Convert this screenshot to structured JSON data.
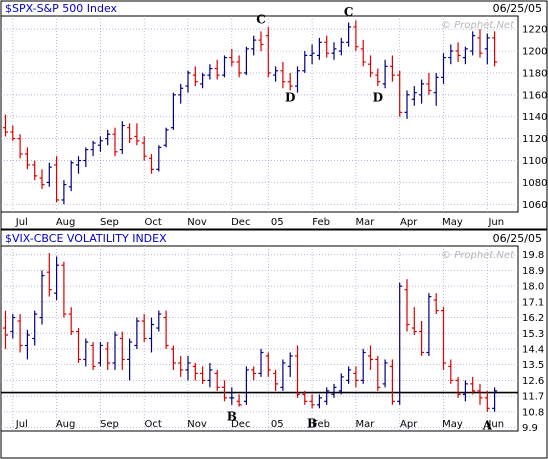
{
  "colors": {
    "up": "#000080",
    "down": "#dd0000",
    "grid": "#9aa0c8",
    "frame": "#000000"
  },
  "chart_data": [
    {
      "type": "ohlc",
      "title": "$SPX-S&P 500 Index",
      "date": "06/25/05",
      "watermark": "© Prophet.Net",
      "x_tick_labels": [
        "Jul",
        "Aug",
        "Sep",
        "Oct",
        "Nov",
        "Dec",
        "05",
        "Feb",
        "Mar",
        "Apr",
        "May",
        "Jun"
      ],
      "x_tick_bar": [
        1,
        7,
        13,
        19,
        25,
        31,
        36,
        42,
        48,
        54,
        60,
        66
      ],
      "y_ticks": [
        1060,
        1080,
        1100,
        1120,
        1140,
        1160,
        1180,
        1200,
        1220
      ],
      "ylim": [
        1053,
        1232
      ],
      "grid": true,
      "bars": [
        [
          1130,
          1142,
          1122,
          1126
        ],
        [
          1126,
          1132,
          1118,
          1120
        ],
        [
          1120,
          1124,
          1102,
          1106
        ],
        [
          1106,
          1112,
          1092,
          1096
        ],
        [
          1096,
          1100,
          1082,
          1086
        ],
        [
          1084,
          1092,
          1074,
          1078
        ],
        [
          1080,
          1098,
          1076,
          1094
        ],
        [
          1096,
          1104,
          1062,
          1064
        ],
        [
          1064,
          1082,
          1060,
          1078
        ],
        [
          1076,
          1100,
          1072,
          1098
        ],
        [
          1096,
          1104,
          1088,
          1100
        ],
        [
          1100,
          1112,
          1094,
          1110
        ],
        [
          1110,
          1118,
          1104,
          1116
        ],
        [
          1114,
          1122,
          1108,
          1118
        ],
        [
          1120,
          1128,
          1114,
          1124
        ],
        [
          1124,
          1130,
          1104,
          1108
        ],
        [
          1110,
          1136,
          1106,
          1132
        ],
        [
          1130,
          1134,
          1116,
          1120
        ],
        [
          1122,
          1134,
          1114,
          1118
        ],
        [
          1116,
          1122,
          1100,
          1104
        ],
        [
          1102,
          1106,
          1088,
          1092
        ],
        [
          1092,
          1114,
          1090,
          1112
        ],
        [
          1114,
          1130,
          1112,
          1128
        ],
        [
          1130,
          1162,
          1128,
          1160
        ],
        [
          1160,
          1170,
          1152,
          1166
        ],
        [
          1168,
          1182,
          1162,
          1180
        ],
        [
          1178,
          1186,
          1168,
          1172
        ],
        [
          1170,
          1180,
          1166,
          1178
        ],
        [
          1178,
          1188,
          1174,
          1184
        ],
        [
          1184,
          1192,
          1174,
          1178
        ],
        [
          1178,
          1196,
          1176,
          1194
        ],
        [
          1194,
          1202,
          1186,
          1190
        ],
        [
          1190,
          1196,
          1176,
          1180
        ],
        [
          1180,
          1204,
          1178,
          1202
        ],
        [
          1202,
          1214,
          1196,
          1210
        ],
        [
          1210,
          1218,
          1200,
          1206
        ],
        [
          1214,
          1222,
          1176,
          1180
        ],
        [
          1178,
          1186,
          1172,
          1182
        ],
        [
          1182,
          1190,
          1166,
          1172
        ],
        [
          1172,
          1180,
          1164,
          1168
        ],
        [
          1168,
          1186,
          1162,
          1182
        ],
        [
          1182,
          1200,
          1180,
          1196
        ],
        [
          1196,
          1206,
          1188,
          1198
        ],
        [
          1196,
          1212,
          1192,
          1208
        ],
        [
          1208,
          1214,
          1194,
          1198
        ],
        [
          1198,
          1208,
          1192,
          1202
        ],
        [
          1200,
          1212,
          1196,
          1208
        ],
        [
          1208,
          1226,
          1204,
          1222
        ],
        [
          1222,
          1228,
          1200,
          1204
        ],
        [
          1202,
          1210,
          1186,
          1190
        ],
        [
          1188,
          1196,
          1176,
          1180
        ],
        [
          1178,
          1184,
          1168,
          1172
        ],
        [
          1170,
          1192,
          1166,
          1186
        ],
        [
          1186,
          1196,
          1172,
          1178
        ],
        [
          1178,
          1182,
          1140,
          1144
        ],
        [
          1144,
          1164,
          1138,
          1160
        ],
        [
          1156,
          1168,
          1150,
          1162
        ],
        [
          1160,
          1174,
          1152,
          1170
        ],
        [
          1170,
          1180,
          1160,
          1164
        ],
        [
          1162,
          1180,
          1150,
          1176
        ],
        [
          1176,
          1198,
          1170,
          1194
        ],
        [
          1194,
          1206,
          1188,
          1200
        ],
        [
          1200,
          1208,
          1190,
          1196
        ],
        [
          1194,
          1204,
          1188,
          1202
        ],
        [
          1200,
          1218,
          1196,
          1214
        ],
        [
          1212,
          1220,
          1194,
          1198
        ],
        [
          1202,
          1216,
          1188,
          1212
        ],
        [
          1212,
          1218,
          1186,
          1190
        ]
      ],
      "annotations": [
        {
          "label": "C",
          "bar": 35,
          "value": 1225
        },
        {
          "label": "D",
          "bar": 39,
          "value": 1154
        },
        {
          "label": "C",
          "bar": 47,
          "value": 1232
        },
        {
          "label": "D",
          "bar": 51,
          "value": 1154
        }
      ]
    },
    {
      "type": "ohlc",
      "title": "$VIX-CBCE VOLATILITY INDEX",
      "date": "06/25/05",
      "watermark": "© Prophet.Net",
      "x_tick_labels": [
        "Jul",
        "Aug",
        "Sep",
        "Oct",
        "Nov",
        "Dec",
        "05",
        "Feb",
        "Mar",
        "Apr",
        "May",
        "Jun"
      ],
      "x_tick_bar": [
        1,
        7,
        13,
        19,
        25,
        31,
        36,
        42,
        48,
        54,
        60,
        66
      ],
      "y_ticks": [
        9.9,
        10.8,
        11.7,
        12.6,
        13.5,
        14.4,
        15.3,
        16.2,
        17.1,
        18.0,
        18.9,
        19.8
      ],
      "ylim": [
        9.7,
        20.3
      ],
      "grid": true,
      "reference_line": 11.9,
      "bars": [
        [
          15.6,
          16.6,
          14.4,
          15.2
        ],
        [
          15.4,
          16.4,
          15.0,
          16.2
        ],
        [
          16.0,
          16.4,
          14.2,
          14.6
        ],
        [
          14.6,
          15.5,
          13.8,
          15.2
        ],
        [
          15.0,
          16.6,
          14.6,
          16.4
        ],
        [
          16.2,
          18.9,
          15.8,
          18.6
        ],
        [
          18.8,
          19.9,
          17.4,
          17.8
        ],
        [
          17.6,
          19.7,
          17.2,
          19.2
        ],
        [
          19.2,
          19.4,
          16.2,
          16.4
        ],
        [
          16.4,
          16.8,
          15.2,
          15.4
        ],
        [
          15.4,
          15.6,
          13.6,
          13.8
        ],
        [
          13.8,
          15.0,
          13.4,
          14.8
        ],
        [
          14.6,
          14.8,
          13.2,
          13.4
        ],
        [
          13.6,
          14.8,
          13.4,
          14.6
        ],
        [
          14.4,
          14.8,
          13.2,
          13.6
        ],
        [
          13.6,
          15.4,
          13.2,
          15.2
        ],
        [
          15.0,
          15.4,
          13.2,
          13.8
        ],
        [
          13.8,
          15.0,
          12.6,
          14.8
        ],
        [
          14.6,
          16.2,
          14.4,
          16.0
        ],
        [
          16.0,
          16.4,
          14.8,
          15.0
        ],
        [
          15.0,
          16.2,
          14.2,
          15.8
        ],
        [
          15.6,
          16.6,
          15.4,
          16.4
        ],
        [
          16.2,
          16.6,
          14.4,
          14.6
        ],
        [
          14.4,
          14.6,
          13.2,
          13.6
        ],
        [
          13.6,
          14.0,
          12.8,
          13.2
        ],
        [
          13.2,
          14.0,
          12.6,
          13.6
        ],
        [
          13.4,
          13.6,
          12.6,
          13.0
        ],
        [
          13.0,
          13.4,
          12.4,
          12.6
        ],
        [
          12.6,
          13.6,
          12.2,
          13.2
        ],
        [
          13.0,
          13.2,
          12.0,
          12.2
        ],
        [
          12.2,
          12.6,
          11.4,
          11.6
        ],
        [
          11.6,
          12.2,
          11.2,
          11.6
        ],
        [
          11.4,
          11.8,
          11.1,
          11.2
        ],
        [
          11.4,
          13.4,
          11.2,
          13.2
        ],
        [
          13.2,
          13.4,
          12.6,
          13.0
        ],
        [
          13.0,
          14.4,
          12.8,
          14.2
        ],
        [
          14.0,
          14.2,
          12.8,
          13.2
        ],
        [
          13.0,
          13.2,
          12.0,
          12.4
        ],
        [
          12.2,
          13.8,
          12.0,
          13.6
        ],
        [
          13.4,
          14.2,
          12.8,
          14.0
        ],
        [
          14.0,
          14.6,
          11.6,
          11.8
        ],
        [
          11.8,
          12.0,
          11.2,
          11.4
        ],
        [
          11.4,
          11.8,
          11.0,
          11.2
        ],
        [
          11.2,
          11.8,
          11.0,
          11.6
        ],
        [
          11.4,
          12.2,
          11.2,
          12.0
        ],
        [
          11.8,
          12.4,
          11.6,
          12.2
        ],
        [
          12.0,
          13.0,
          11.8,
          12.8
        ],
        [
          12.6,
          13.4,
          12.4,
          13.2
        ],
        [
          13.0,
          13.4,
          12.2,
          12.6
        ],
        [
          12.6,
          14.4,
          12.4,
          14.2
        ],
        [
          14.0,
          14.6,
          13.2,
          13.8
        ],
        [
          13.8,
          14.0,
          12.0,
          12.2
        ],
        [
          12.4,
          13.8,
          12.2,
          13.6
        ],
        [
          13.4,
          13.8,
          11.2,
          11.4
        ],
        [
          11.4,
          18.2,
          11.2,
          18.0
        ],
        [
          17.8,
          18.4,
          15.4,
          15.8
        ],
        [
          15.6,
          16.8,
          15.2,
          15.4
        ],
        [
          15.4,
          16.0,
          14.0,
          14.2
        ],
        [
          14.2,
          17.6,
          14.0,
          17.4
        ],
        [
          17.2,
          17.6,
          16.4,
          16.6
        ],
        [
          16.6,
          16.8,
          13.2,
          13.6
        ],
        [
          13.4,
          13.8,
          12.4,
          12.6
        ],
        [
          12.6,
          12.8,
          11.6,
          11.8
        ],
        [
          11.8,
          12.6,
          11.4,
          12.4
        ],
        [
          12.4,
          12.8,
          11.8,
          12.0
        ],
        [
          12.0,
          12.4,
          11.2,
          11.6
        ],
        [
          11.6,
          12.0,
          10.8,
          11.0
        ],
        [
          11.0,
          12.2,
          10.8,
          12.0
        ]
      ],
      "annotations": [
        {
          "label": "B",
          "bar": 31,
          "value": 10.3
        },
        {
          "label": "B",
          "bar": 42,
          "value": 9.9
        },
        {
          "label": "A",
          "bar": 66,
          "value": 9.8
        }
      ]
    }
  ]
}
